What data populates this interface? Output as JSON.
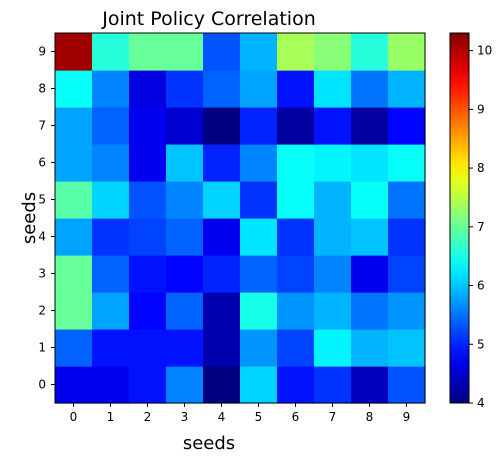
{
  "chart_data": {
    "type": "heatmap",
    "title": "Joint Policy Correlation",
    "xlabel": "seeds",
    "ylabel": "seeds",
    "x_categories": [
      "0",
      "1",
      "2",
      "3",
      "4",
      "5",
      "6",
      "7",
      "8",
      "9"
    ],
    "y_categories": [
      "0",
      "1",
      "2",
      "3",
      "4",
      "5",
      "6",
      "7",
      "8",
      "9"
    ],
    "y_order": "bottom-to-top",
    "colormap": "jet",
    "colorbar": {
      "vmin": 4.0,
      "vmax": 10.3,
      "ticks": [
        4,
        5,
        6,
        7,
        8,
        9,
        10
      ],
      "tick_labels": [
        "4",
        "5",
        "6",
        "7",
        "8",
        "9",
        "10"
      ],
      "position": "right"
    },
    "grid": false,
    "values": [
      [
        4.7,
        4.7,
        4.9,
        5.6,
        4.0,
        6.1,
        4.9,
        5.1,
        4.4,
        5.3
      ],
      [
        5.4,
        4.9,
        4.9,
        4.9,
        4.3,
        5.7,
        5.2,
        6.3,
        5.9,
        6.0
      ],
      [
        7.0,
        5.8,
        4.8,
        5.4,
        4.3,
        6.5,
        5.7,
        5.9,
        5.5,
        5.7
      ],
      [
        7.0,
        5.4,
        4.9,
        4.8,
        5.0,
        5.4,
        5.2,
        5.6,
        4.7,
        5.2
      ],
      [
        5.8,
        5.1,
        5.2,
        5.4,
        4.7,
        6.2,
        5.1,
        5.9,
        6.0,
        5.1
      ],
      [
        6.9,
        6.1,
        5.3,
        5.6,
        6.1,
        5.1,
        6.4,
        5.9,
        6.4,
        5.5
      ],
      [
        5.8,
        5.6,
        4.7,
        6.0,
        5.0,
        5.6,
        6.4,
        6.3,
        6.2,
        6.4
      ],
      [
        5.8,
        5.4,
        4.7,
        4.5,
        4.0,
        5.0,
        4.2,
        4.9,
        4.2,
        4.8
      ],
      [
        6.4,
        5.6,
        4.6,
        5.1,
        5.4,
        5.8,
        4.9,
        6.2,
        5.5,
        5.9
      ],
      [
        10.1,
        6.6,
        7.0,
        7.0,
        5.3,
        5.9,
        7.4,
        7.2,
        6.6,
        7.3
      ]
    ]
  }
}
